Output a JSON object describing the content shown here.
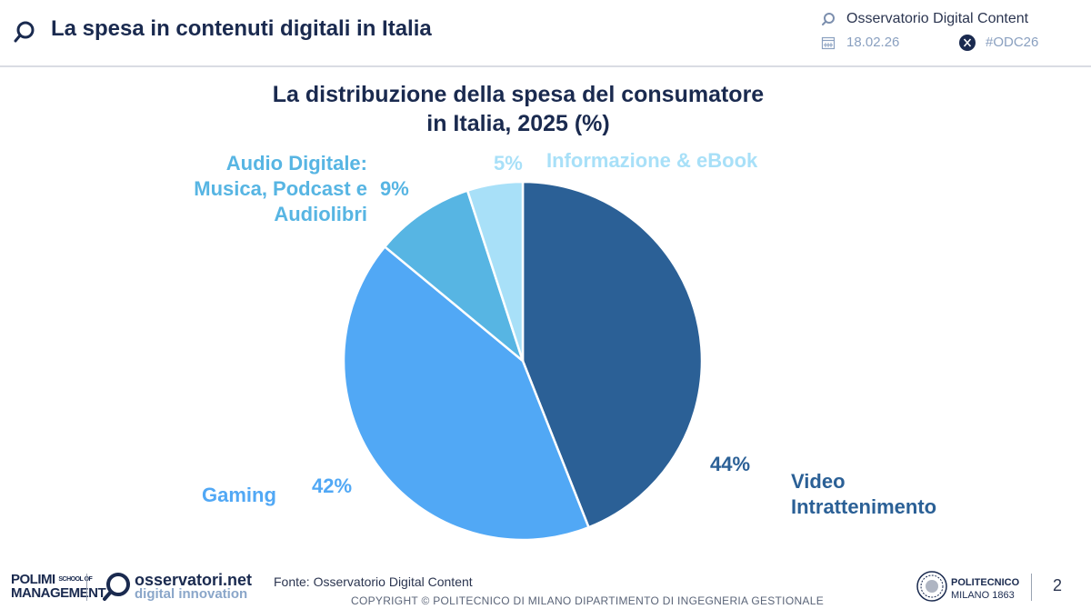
{
  "header": {
    "title": "La spesa in contenuti digitali in Italia",
    "observatory": "Osservatorio Digital Content",
    "date": "18.02.26",
    "hashtag": "#ODC26"
  },
  "chart_data": {
    "type": "pie",
    "title_line1": "La distribuzione della spesa del consumatore",
    "title_line2": "in Italia, 2025 (%)",
    "slices": [
      {
        "name_lines": [
          "Video",
          "Intrattenimento"
        ],
        "value": 44,
        "value_label": "44%",
        "color": "#2b6096"
      },
      {
        "name_lines": [
          "Gaming"
        ],
        "value": 42,
        "value_label": "42%",
        "color": "#51a8f5"
      },
      {
        "name_lines": [
          "Audio Digitale:",
          "Musica, Podcast e",
          "Audiolibri"
        ],
        "value": 9,
        "value_label": "9%",
        "color": "#57b5e3"
      },
      {
        "name_lines": [
          "Informazione & eBook"
        ],
        "value": 5,
        "value_label": "5%",
        "color": "#a8e0f8"
      }
    ]
  },
  "footer": {
    "source": "Fonte: Osservatorio Digital Content",
    "copyright": "COPYRIGHT © POLITECNICO DI MILANO DIPARTIMENTO DI INGEGNERIA GESTIONALE",
    "page": "2",
    "logo_polimi_line1": "POLIMI",
    "logo_polimi_small": "SCHOOL OF",
    "logo_polimi_line2": "MANAGEMENT",
    "logo_oss_line1": "osservatori.net",
    "logo_oss_line2": "digital innovation",
    "logo_poli_line1": "POLITECNICO",
    "logo_poli_line2": "MILANO 1863"
  }
}
